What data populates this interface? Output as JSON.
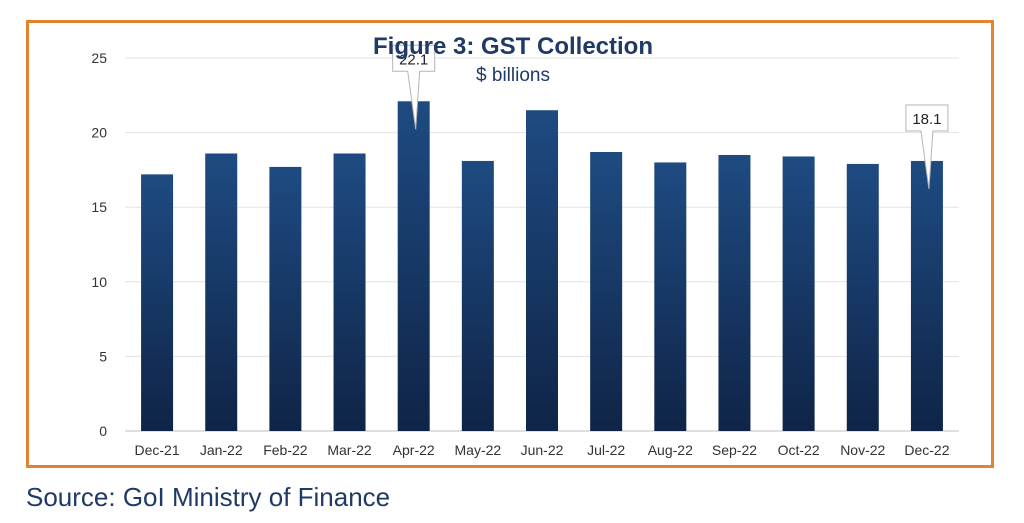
{
  "chart_data": {
    "type": "bar",
    "title": "Figure 3: GST Collection",
    "subtitle": "$ billions",
    "xlabel": "",
    "ylabel": "",
    "ylim": [
      0,
      25
    ],
    "yticks": [
      0,
      5,
      10,
      15,
      20,
      25
    ],
    "grid": true,
    "categories": [
      "Dec-21",
      "Jan-22",
      "Feb-22",
      "Mar-22",
      "Apr-22",
      "May-22",
      "Jun-22",
      "Jul-22",
      "Aug-22",
      "Sep-22",
      "Oct-22",
      "Nov-22",
      "Dec-22"
    ],
    "values": [
      17.2,
      18.6,
      17.7,
      18.6,
      22.1,
      18.1,
      21.5,
      18.7,
      18.0,
      18.5,
      18.4,
      17.9,
      18.1
    ],
    "annotations": [
      {
        "category": "Apr-22",
        "text": "22.1"
      },
      {
        "category": "Dec-22",
        "text": "18.1"
      }
    ],
    "colors": {
      "bar_top": "#1e4b82",
      "bar_bottom": "#0f2447",
      "frame": "#e2832f",
      "title": "#1f3a66"
    }
  },
  "source": "Source: GoI Ministry of Finance"
}
